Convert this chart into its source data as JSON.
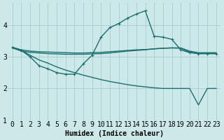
{
  "xlabel": "Humidex (Indice chaleur)",
  "bg_color": "#cce8e8",
  "line_color": "#1a7070",
  "xlim": [
    -0.5,
    23.5
  ],
  "ylim": [
    1.0,
    4.7
  ],
  "yticks": [
    1,
    2,
    3,
    4
  ],
  "xticks": [
    0,
    1,
    2,
    3,
    4,
    5,
    6,
    7,
    8,
    9,
    10,
    11,
    12,
    13,
    14,
    15,
    16,
    17,
    18,
    19,
    20,
    21,
    22,
    23
  ],
  "series": [
    {
      "x": [
        0,
        1,
        2,
        3,
        4,
        5,
        6,
        7,
        8,
        9,
        10,
        11,
        12,
        13,
        14,
        15,
        16,
        17,
        18,
        19,
        20,
        21,
        22,
        23
      ],
      "y": [
        3.3,
        3.22,
        3.18,
        3.16,
        3.15,
        3.14,
        3.13,
        3.12,
        3.12,
        3.13,
        3.14,
        3.16,
        3.18,
        3.2,
        3.22,
        3.23,
        3.25,
        3.27,
        3.28,
        3.28,
        3.18,
        3.13,
        3.13,
        3.13
      ],
      "marker": null,
      "lw": 1.0
    },
    {
      "x": [
        0,
        1,
        2,
        3,
        4,
        5,
        6,
        7,
        8,
        9,
        10,
        11,
        12,
        13,
        14,
        15,
        16,
        17,
        18,
        19,
        20,
        21,
        22,
        23
      ],
      "y": [
        3.28,
        3.18,
        3.14,
        3.12,
        3.1,
        3.09,
        3.08,
        3.08,
        3.08,
        3.09,
        3.1,
        3.12,
        3.15,
        3.18,
        3.2,
        3.22,
        3.25,
        3.27,
        3.28,
        3.27,
        3.15,
        3.1,
        3.1,
        3.1
      ],
      "marker": null,
      "lw": 1.0
    },
    {
      "x": [
        0,
        1,
        2,
        3,
        4,
        5,
        6,
        7,
        8,
        9,
        10,
        11,
        12,
        13,
        14,
        15,
        16,
        17,
        18,
        19,
        20,
        21,
        22,
        23
      ],
      "y": [
        3.3,
        3.2,
        3.0,
        2.72,
        2.62,
        2.5,
        2.45,
        2.45,
        2.78,
        3.05,
        3.62,
        3.92,
        4.05,
        4.22,
        4.35,
        4.45,
        3.65,
        3.62,
        3.55,
        3.22,
        3.13,
        3.1,
        3.1,
        3.1
      ],
      "marker": "+",
      "lw": 1.0
    },
    {
      "x": [
        0,
        1,
        2,
        3,
        4,
        5,
        6,
        7,
        8,
        9,
        10,
        11,
        12,
        13,
        14,
        15,
        16,
        17,
        18,
        19,
        20,
        21,
        22,
        23
      ],
      "y": [
        3.3,
        3.2,
        3.05,
        2.9,
        2.8,
        2.68,
        2.58,
        2.5,
        2.42,
        2.35,
        2.28,
        2.22,
        2.17,
        2.12,
        2.08,
        2.05,
        2.02,
        2.0,
        2.0,
        2.0,
        2.0,
        1.48,
        2.0,
        2.0
      ],
      "marker": null,
      "lw": 1.0
    }
  ],
  "grid_color": "#aacccc",
  "tick_fontsize": 7
}
